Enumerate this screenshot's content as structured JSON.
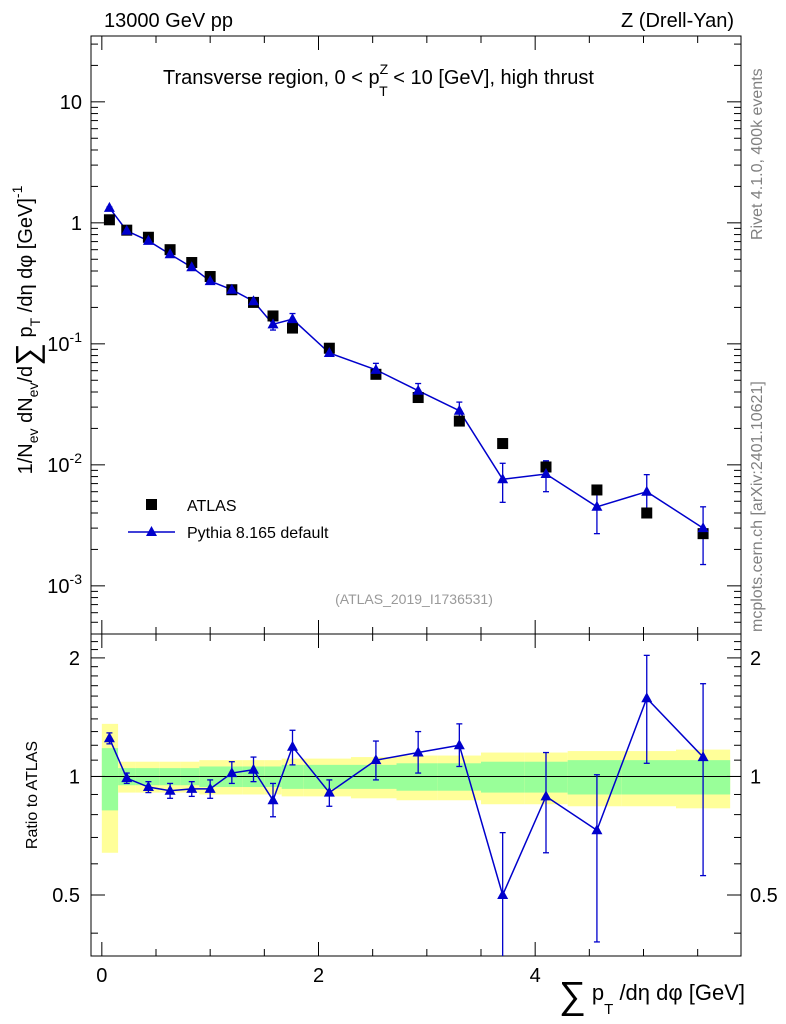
{
  "header": {
    "left": "13000 GeV pp",
    "right": "Z (Drell-Yan)"
  },
  "side_labels": {
    "rivet": "Rivet 4.1.0,  400k events",
    "mcplots": "mcplots.cern.ch [arXiv:2401.10621]"
  },
  "chart_data": {
    "type": "scatter",
    "title": "Transverse region, 0 < p_T^Z < 10 [GeV], high thrust",
    "title_main": "Transverse region, 0 < p",
    "title_sup": "Z",
    "title_sub": "T",
    "title_tail": " < 10 [GeV], high thrust",
    "analysis_id": "(ATLAS_2019_I1736531)",
    "xlabel": "∑ p_T /dη dφ [GeV]",
    "ylabel": "1/N_ev dN_ev/d∑ p_T /dη dφ [GeV]^-1",
    "ylabel_ratio": "Ratio to ATLAS",
    "xlim": [
      -0.1,
      5.9
    ],
    "ylim": [
      0.0004,
      35
    ],
    "ylim_ratio": [
      0.35,
      2.3
    ],
    "x_ticks": [
      "0",
      "2",
      "4"
    ],
    "y_ticks": [
      "10^-3",
      "10^-2",
      "10^-1",
      "1",
      "10"
    ],
    "ratio_ticks": [
      "0.5",
      "1",
      "2"
    ],
    "legend": [
      "ATLAS",
      "Pythia 8.165 default"
    ],
    "series": [
      {
        "name": "ATLAS",
        "marker": "square",
        "color": "#000000",
        "x": [
          0.07,
          0.23,
          0.43,
          0.63,
          0.83,
          1.0,
          1.2,
          1.4,
          1.58,
          1.76,
          2.1,
          2.53,
          2.92,
          3.3,
          3.7,
          4.1,
          4.57,
          5.03,
          5.55
        ],
        "y": [
          1.06,
          0.87,
          0.76,
          0.6,
          0.47,
          0.36,
          0.28,
          0.22,
          0.17,
          0.135,
          0.092,
          0.056,
          0.036,
          0.023,
          0.015,
          0.0096,
          0.0062,
          0.004,
          0.0027
        ]
      },
      {
        "name": "Pythia 8.165 default",
        "marker": "triangle",
        "color": "#0000cc",
        "x": [
          0.07,
          0.23,
          0.43,
          0.63,
          0.83,
          1.0,
          1.2,
          1.4,
          1.58,
          1.76,
          2.1,
          2.53,
          2.92,
          3.3,
          3.7,
          4.1,
          4.57,
          5.03,
          5.55
        ],
        "y": [
          1.33,
          0.86,
          0.71,
          0.55,
          0.43,
          0.33,
          0.28,
          0.225,
          0.145,
          0.16,
          0.084,
          0.061,
          0.041,
          0.028,
          0.0076,
          0.0084,
          0.0045,
          0.006,
          0.003
        ],
        "yerr": [
          0.02,
          0.02,
          0.02,
          0.02,
          0.02,
          0.015,
          0.012,
          0.012,
          0.015,
          0.018,
          0.005,
          0.008,
          0.006,
          0.005,
          0.0027,
          0.0024,
          0.0018,
          0.0023,
          0.0015
        ]
      }
    ],
    "ratio": {
      "x": [
        0.07,
        0.23,
        0.43,
        0.63,
        0.83,
        1.0,
        1.2,
        1.4,
        1.58,
        1.76,
        2.1,
        2.53,
        2.92,
        3.3,
        3.7,
        4.1,
        4.57,
        5.03,
        5.55
      ],
      "y": [
        1.25,
        0.99,
        0.94,
        0.92,
        0.93,
        0.93,
        1.02,
        1.04,
        0.87,
        1.19,
        0.91,
        1.1,
        1.15,
        1.2,
        0.5,
        0.89,
        0.73,
        1.58,
        1.12
      ],
      "err_low": [
        0.04,
        0.03,
        0.03,
        0.04,
        0.04,
        0.05,
        0.06,
        0.07,
        0.08,
        0.12,
        0.07,
        0.12,
        0.13,
        0.14,
        0.2,
        0.25,
        0.35,
        0.5,
        0.56
      ],
      "err_high": [
        0.04,
        0.03,
        0.03,
        0.04,
        0.04,
        0.05,
        0.07,
        0.08,
        0.09,
        0.12,
        0.07,
        0.13,
        0.15,
        0.16,
        0.22,
        0.26,
        0.28,
        0.45,
        0.6
      ],
      "bins": [
        0,
        0.15,
        0.31,
        0.53,
        0.73,
        0.9,
        1.1,
        1.3,
        1.5,
        1.66,
        1.86,
        2.3,
        2.72,
        3.1,
        3.5,
        3.9,
        4.3,
        4.8,
        5.3,
        5.8
      ],
      "band_inner": [
        0.18,
        0.05,
        0.05,
        0.05,
        0.05,
        0.06,
        0.06,
        0.06,
        0.06,
        0.07,
        0.07,
        0.07,
        0.08,
        0.08,
        0.09,
        0.09,
        0.1,
        0.1,
        0.1
      ],
      "band_outer": [
        0.36,
        0.09,
        0.09,
        0.09,
        0.09,
        0.1,
        0.1,
        0.1,
        0.1,
        0.11,
        0.11,
        0.12,
        0.13,
        0.13,
        0.15,
        0.15,
        0.16,
        0.16,
        0.17
      ]
    }
  }
}
